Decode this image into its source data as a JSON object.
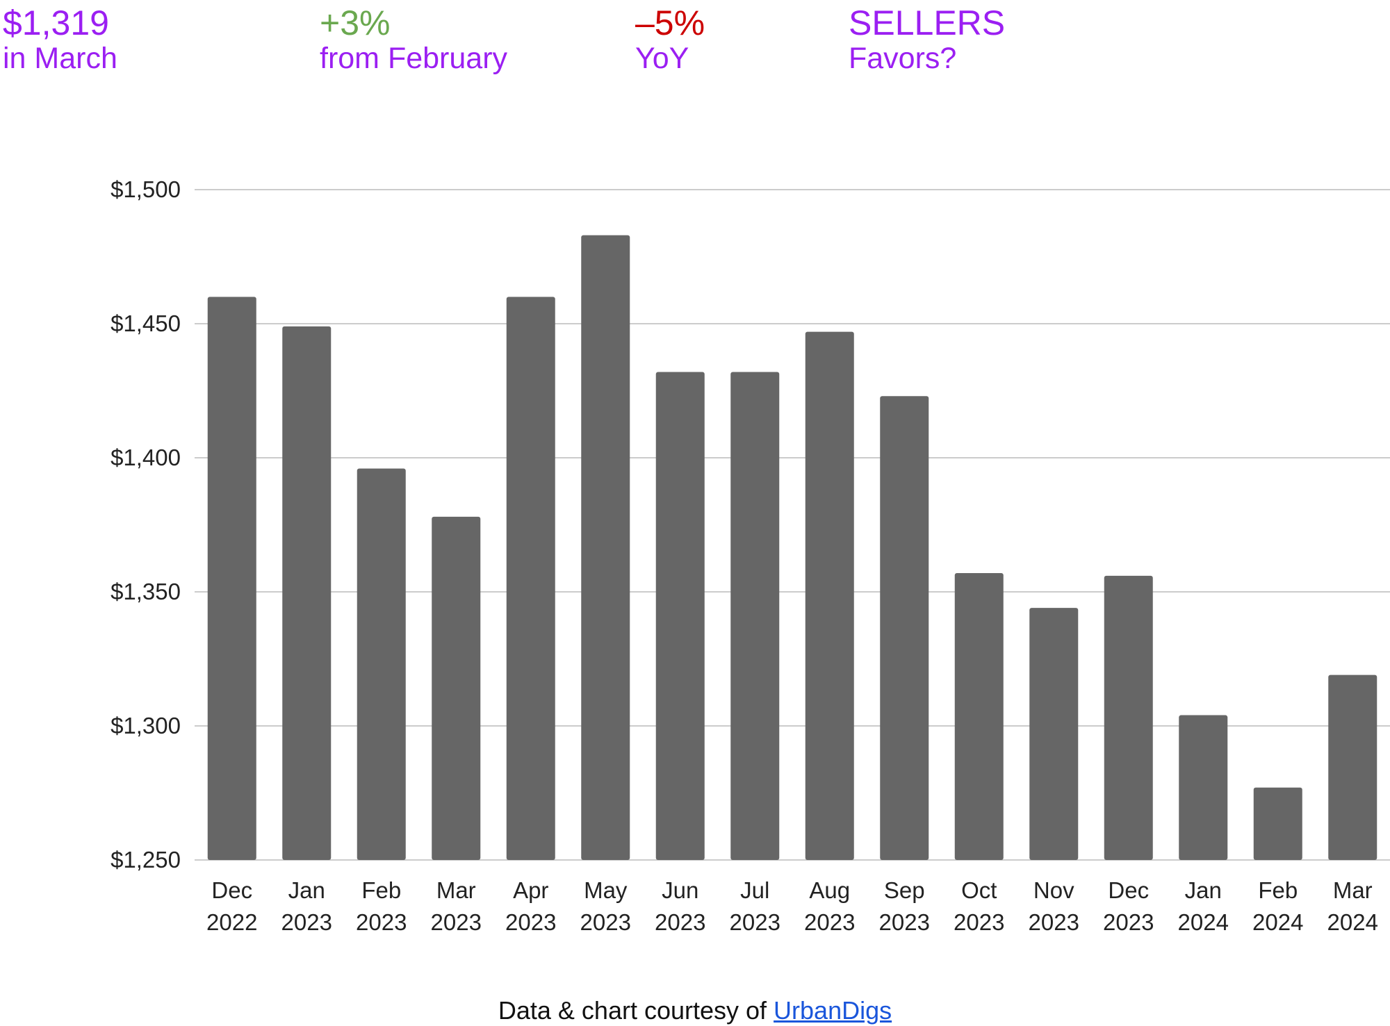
{
  "header": {
    "price": {
      "value": "$1,319",
      "caption": "in March"
    },
    "mom": {
      "value": "+3%",
      "caption": "from February"
    },
    "yoy": {
      "value": "–5%",
      "caption": "YoY"
    },
    "favors": {
      "value": "SELLERS",
      "caption": "Favors?"
    }
  },
  "colors": {
    "accent": "#9b1ff2",
    "positive": "#6aa84f",
    "negative": "#cc0000",
    "bar": "#666666",
    "grid": "#cccccc",
    "link": "#1a56db"
  },
  "credit": {
    "text": "Data & chart courtesy of ",
    "link_text": "UrbanDigs"
  },
  "chart_data": {
    "type": "bar",
    "title": "",
    "xlabel": "",
    "ylabel": "",
    "categories": [
      [
        "Dec",
        "2022"
      ],
      [
        "Jan",
        "2023"
      ],
      [
        "Feb",
        "2023"
      ],
      [
        "Mar",
        "2023"
      ],
      [
        "Apr",
        "2023"
      ],
      [
        "May",
        "2023"
      ],
      [
        "Jun",
        "2023"
      ],
      [
        "Jul",
        "2023"
      ],
      [
        "Aug",
        "2023"
      ],
      [
        "Sep",
        "2023"
      ],
      [
        "Oct",
        "2023"
      ],
      [
        "Nov",
        "2023"
      ],
      [
        "Dec",
        "2023"
      ],
      [
        "Jan",
        "2024"
      ],
      [
        "Feb",
        "2024"
      ],
      [
        "Mar",
        "2024"
      ]
    ],
    "values": [
      1460,
      1449,
      1396,
      1378,
      1460,
      1483,
      1432,
      1432,
      1447,
      1423,
      1357,
      1344,
      1356,
      1304,
      1277,
      1319
    ],
    "ylim": [
      1250,
      1500
    ],
    "yticks": [
      1250,
      1300,
      1350,
      1400,
      1450,
      1500
    ],
    "ytick_labels": [
      "$1,250",
      "$1,300",
      "$1,350",
      "$1,400",
      "$1,450",
      "$1,500"
    ],
    "grid": true,
    "legend": "none"
  }
}
